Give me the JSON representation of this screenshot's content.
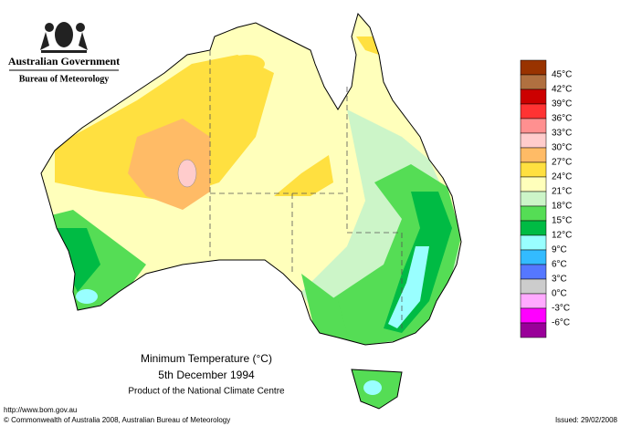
{
  "header": {
    "title": "Australian Government",
    "subtitle": "Bureau of Meteorology"
  },
  "map": {
    "title": "Minimum Temperature (°C)",
    "date": "5th December 1994",
    "credit": "Product of the National Climate Centre"
  },
  "legend": {
    "items": [
      {
        "label": "45°C",
        "color": "#993300"
      },
      {
        "label": "42°C",
        "color": "#b07040"
      },
      {
        "label": "39°C",
        "color": "#cc0000"
      },
      {
        "label": "36°C",
        "color": "#ff3333"
      },
      {
        "label": "33°C",
        "color": "#ff9090"
      },
      {
        "label": "30°C",
        "color": "#ffcccc"
      },
      {
        "label": "27°C",
        "color": "#ffbb66"
      },
      {
        "label": "24°C",
        "color": "#ffe040"
      },
      {
        "label": "21°C",
        "color": "#ffffbb"
      },
      {
        "label": "18°C",
        "color": "#ccf5c8"
      },
      {
        "label": "15°C",
        "color": "#55dd55"
      },
      {
        "label": "12°C",
        "color": "#00bb44"
      },
      {
        "label": "9°C",
        "color": "#99ffff"
      },
      {
        "label": "6°C",
        "color": "#33bbff"
      },
      {
        "label": "3°C",
        "color": "#5577ff"
      },
      {
        "label": "0°C",
        "color": "#cccccc"
      },
      {
        "label": "-3°C",
        "color": "#ffaaff"
      },
      {
        "label": "-6°C",
        "color": "#ff00ff"
      },
      {
        "label": "",
        "color": "#990099"
      }
    ]
  },
  "footer": {
    "url": "http://www.bom.gov.au",
    "copyright": "© Commonwealth of Australia 2008, Australian Bureau of Meteorology",
    "issued": "Issued: 29/02/2008"
  }
}
